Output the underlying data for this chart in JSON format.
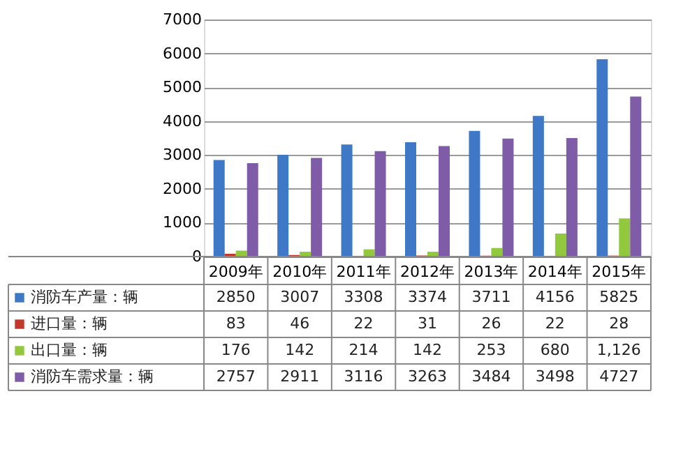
{
  "chart_data": {
    "type": "bar",
    "categories": [
      "2009年",
      "2010年",
      "2011年",
      "2012年",
      "2013年",
      "2014年",
      "2015年"
    ],
    "series": [
      {
        "name": "消防车产量：辆",
        "color": "#3f78c6",
        "values": [
          2850,
          3007,
          3308,
          3374,
          3711,
          4156,
          5825
        ],
        "value_labels": [
          "2850",
          "3007",
          "3308",
          "3374",
          "3711",
          "4156",
          "5825"
        ]
      },
      {
        "name": "进口量：辆",
        "color": "#c0392b",
        "values": [
          83,
          46,
          22,
          31,
          26,
          22,
          28
        ],
        "value_labels": [
          "83",
          "46",
          "22",
          "31",
          "26",
          "22",
          "28"
        ]
      },
      {
        "name": "出口量：辆",
        "color": "#92c83e",
        "values": [
          176,
          142,
          214,
          142,
          253,
          680,
          1126
        ],
        "value_labels": [
          "176",
          "142",
          "214",
          "142",
          "253",
          "680",
          "1,126"
        ]
      },
      {
        "name": "消防车需求量：辆",
        "color": "#7e5ca8",
        "values": [
          2757,
          2911,
          3116,
          3263,
          3484,
          3498,
          4727
        ],
        "value_labels": [
          "2757",
          "2911",
          "3116",
          "3263",
          "3484",
          "3498",
          "4727"
        ]
      }
    ],
    "ylim": [
      0,
      7000
    ],
    "yticks": [
      0,
      1000,
      2000,
      3000,
      4000,
      5000,
      6000,
      7000
    ],
    "grid": "y",
    "legend": "bottom"
  }
}
